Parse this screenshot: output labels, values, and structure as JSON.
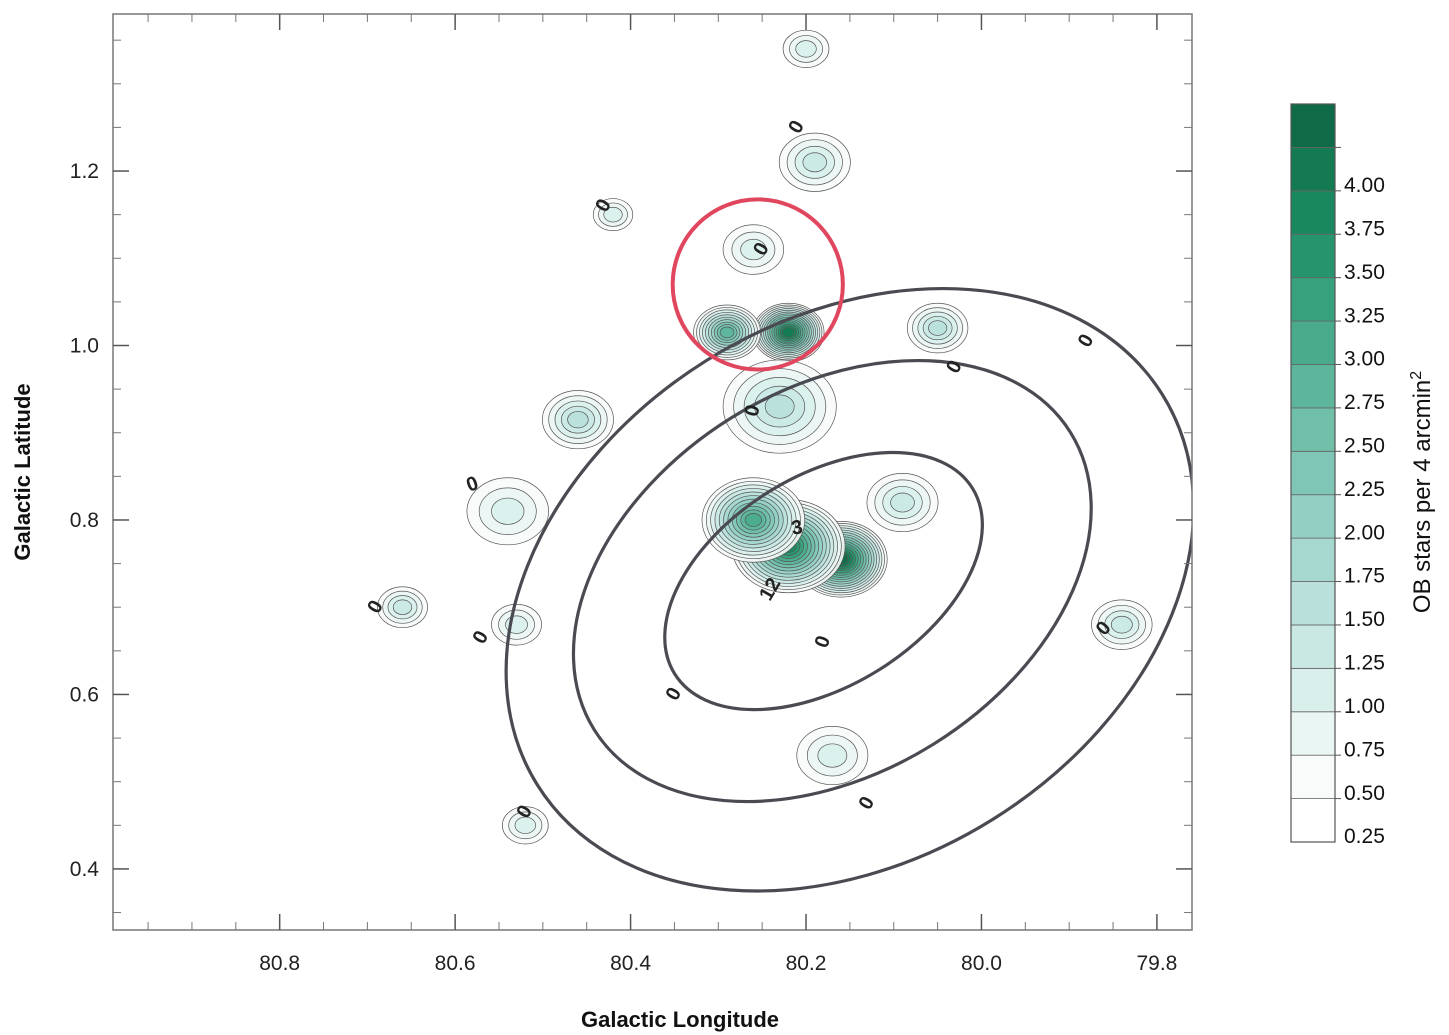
{
  "chart_data": {
    "type": "contour",
    "xlabel": "Galactic Longitude",
    "ylabel": "Galactic Latitude",
    "xlim": [
      80.99,
      79.76
    ],
    "ylim": [
      0.33,
      1.38
    ],
    "x_reversed": true,
    "x_ticks": [
      "80.8",
      "80.6",
      "80.4",
      "80.2",
      "80.0",
      "79.8"
    ],
    "y_ticks": [
      "0.4",
      "0.6",
      "0.8",
      "1.0",
      "1.2"
    ],
    "colorbar": {
      "title": "OB stars per 4 arcmin",
      "title_superscript": "2",
      "levels": [
        "0.25",
        "0.50",
        "0.75",
        "1.00",
        "1.25",
        "1.50",
        "1.75",
        "2.00",
        "2.25",
        "2.50",
        "2.75",
        "3.00",
        "3.25",
        "3.50",
        "3.75",
        "4.00"
      ],
      "colors": [
        "#ffffff",
        "#f8fbfa",
        "#eaf6f4",
        "#d9efec",
        "#c9e8e3",
        "#b9e0da",
        "#a6d8cf",
        "#93cfc3",
        "#7fc6b7",
        "#6fbfa9",
        "#5db59c",
        "#4aab8c",
        "#37a07c",
        "#26956d",
        "#1a885f",
        "#137a52",
        "#0f6b47"
      ]
    },
    "large_contours": {
      "color": "#4a4a52",
      "rings": [
        {
          "cx": 80.18,
          "cy": 0.73,
          "rx": 0.2,
          "ry": 0.12,
          "rot": -32
        },
        {
          "cx": 80.17,
          "cy": 0.73,
          "rx": 0.32,
          "ry": 0.22,
          "rot": -32
        },
        {
          "cx": 80.15,
          "cy": 0.72,
          "rx": 0.42,
          "ry": 0.31,
          "rot": -32
        }
      ]
    },
    "density_peaks": [
      {
        "x": 80.16,
        "y": 0.755,
        "level": 16,
        "spread": 0.04
      },
      {
        "x": 80.22,
        "y": 0.77,
        "level": 14,
        "spread": 0.05
      },
      {
        "x": 80.26,
        "y": 0.8,
        "level": 11,
        "spread": 0.045
      },
      {
        "x": 80.22,
        "y": 1.015,
        "level": 15,
        "spread": 0.03
      },
      {
        "x": 80.29,
        "y": 1.015,
        "level": 10,
        "spread": 0.028
      },
      {
        "x": 80.23,
        "y": 0.93,
        "level": 5,
        "spread": 0.05
      },
      {
        "x": 80.09,
        "y": 0.82,
        "level": 4,
        "spread": 0.03
      },
      {
        "x": 80.05,
        "y": 1.02,
        "level": 5,
        "spread": 0.025
      },
      {
        "x": 80.46,
        "y": 0.915,
        "level": 5,
        "spread": 0.03
      },
      {
        "x": 80.54,
        "y": 0.81,
        "level": 3,
        "spread": 0.035
      },
      {
        "x": 80.66,
        "y": 0.7,
        "level": 4,
        "spread": 0.02
      },
      {
        "x": 79.84,
        "y": 0.68,
        "level": 4,
        "spread": 0.025
      },
      {
        "x": 80.19,
        "y": 1.21,
        "level": 4,
        "spread": 0.03
      },
      {
        "x": 80.26,
        "y": 1.11,
        "level": 3,
        "spread": 0.025
      },
      {
        "x": 80.53,
        "y": 0.68,
        "level": 3,
        "spread": 0.02
      },
      {
        "x": 80.52,
        "y": 0.45,
        "level": 3,
        "spread": 0.018
      },
      {
        "x": 80.17,
        "y": 0.53,
        "level": 3,
        "spread": 0.03
      },
      {
        "x": 80.2,
        "y": 1.34,
        "level": 3,
        "spread": 0.018
      },
      {
        "x": 80.42,
        "y": 1.15,
        "level": 3,
        "spread": 0.015
      }
    ],
    "contour_labels": [
      {
        "text": "0",
        "x": 80.25,
        "y": 1.11,
        "rot": -60
      },
      {
        "text": "0",
        "x": 80.21,
        "y": 1.25,
        "rot": -60
      },
      {
        "text": "0",
        "x": 80.43,
        "y": 1.16,
        "rot": -60
      },
      {
        "text": "0",
        "x": 80.26,
        "y": 0.925,
        "rot": -75
      },
      {
        "text": "0",
        "x": 79.88,
        "y": 1.005,
        "rot": -60
      },
      {
        "text": "0",
        "x": 80.03,
        "y": 0.975,
        "rot": -60
      },
      {
        "text": "0",
        "x": 80.58,
        "y": 0.84,
        "rot": -20
      },
      {
        "text": "3",
        "x": 80.21,
        "y": 0.79,
        "rot": -10
      },
      {
        "text": "12",
        "x": 80.24,
        "y": 0.72,
        "rot": -60
      },
      {
        "text": "0",
        "x": 80.18,
        "y": 0.66,
        "rot": -70
      },
      {
        "text": "0",
        "x": 80.35,
        "y": 0.6,
        "rot": -60
      },
      {
        "text": "0",
        "x": 80.69,
        "y": 0.7,
        "rot": -60
      },
      {
        "text": "0",
        "x": 80.57,
        "y": 0.665,
        "rot": -60
      },
      {
        "text": "0",
        "x": 79.86,
        "y": 0.675,
        "rot": -50
      },
      {
        "text": "0",
        "x": 80.13,
        "y": 0.475,
        "rot": -60
      },
      {
        "text": "0",
        "x": 80.52,
        "y": 0.465,
        "rot": -60
      }
    ],
    "highlight_circle": {
      "x": 80.255,
      "y": 1.07,
      "r_deg": 0.097,
      "color": "#e0475f"
    }
  }
}
